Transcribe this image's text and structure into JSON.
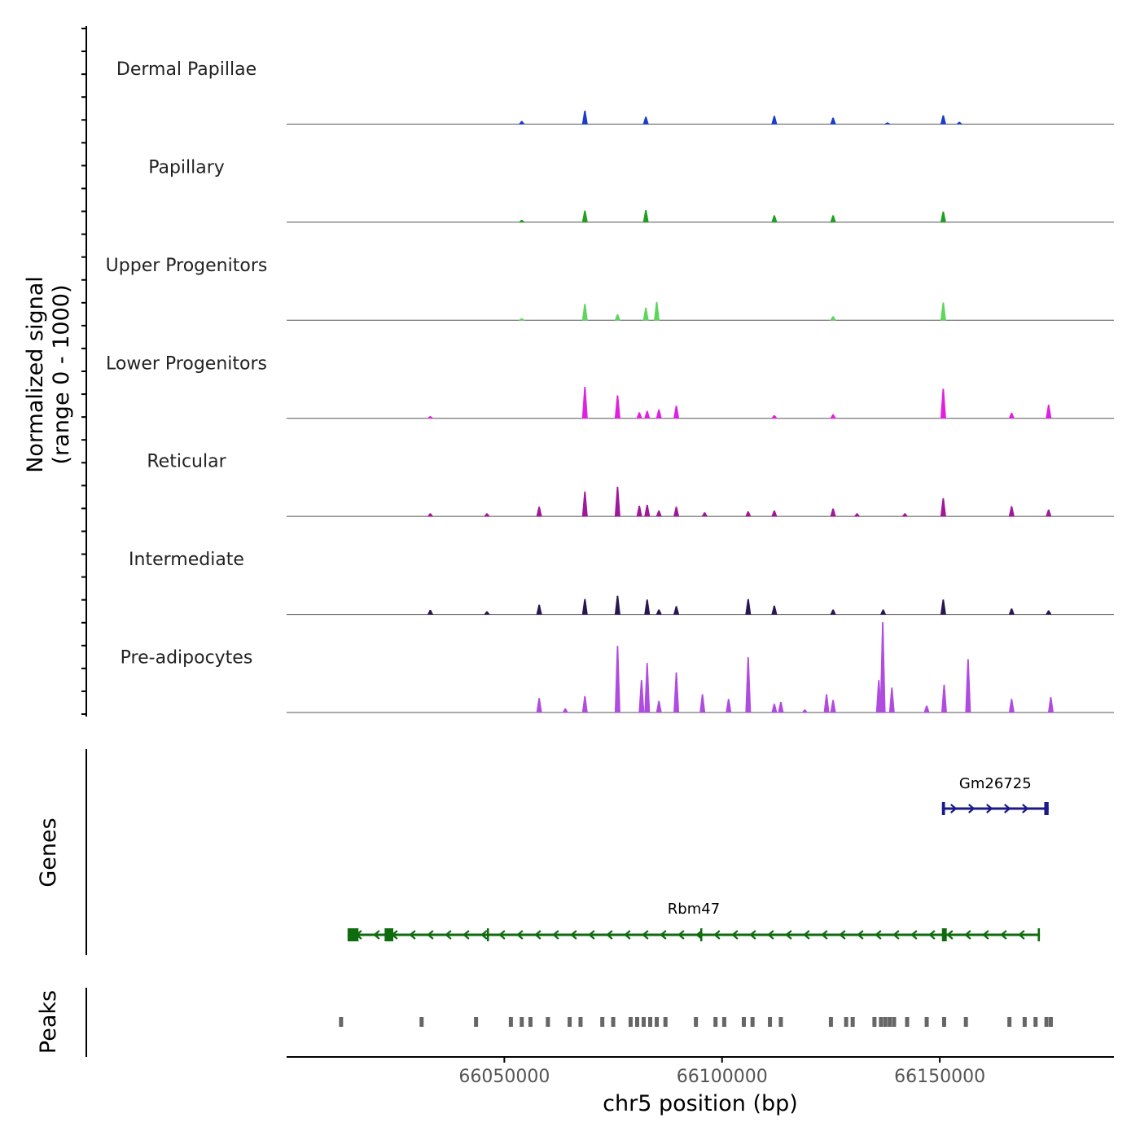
{
  "chart_data": {
    "type": "area",
    "chromosome": "chr5",
    "region": [
      66000000,
      66190000
    ],
    "coverage": {
      "ylabel_line1": "Normalized signal",
      "ylabel_line2": "(range 0 - 1000)",
      "ylim": [
        0,
        1000
      ],
      "tracks": [
        {
          "name": "Dermal Papillae",
          "color": "#1a3ccc",
          "peaks": [
            [
              66068500,
              140
            ],
            [
              66082500,
              75
            ],
            [
              66112000,
              85
            ],
            [
              66125500,
              65
            ],
            [
              66150800,
              90
            ],
            [
              66054000,
              30
            ],
            [
              66154500,
              22
            ],
            [
              66138000,
              15
            ]
          ]
        },
        {
          "name": "Papillary",
          "color": "#1fa01f",
          "peaks": [
            [
              66068500,
              120
            ],
            [
              66082500,
              125
            ],
            [
              66112000,
              70
            ],
            [
              66125500,
              70
            ],
            [
              66150800,
              110
            ],
            [
              66054000,
              22
            ]
          ]
        },
        {
          "name": "Upper Progenitors",
          "color": "#5cd65c",
          "peaks": [
            [
              66068500,
              170
            ],
            [
              66076000,
              60
            ],
            [
              66082500,
              130
            ],
            [
              66085000,
              190
            ],
            [
              66125500,
              40
            ],
            [
              66150800,
              185
            ],
            [
              66054000,
              18
            ]
          ]
        },
        {
          "name": "Lower Progenitors",
          "color": "#e020e0",
          "peaks": [
            [
              66068500,
              330
            ],
            [
              66076000,
              240
            ],
            [
              66081000,
              60
            ],
            [
              66082800,
              75
            ],
            [
              66085500,
              90
            ],
            [
              66089500,
              130
            ],
            [
              66150800,
              310
            ],
            [
              66166500,
              55
            ],
            [
              66175000,
              140
            ],
            [
              66125500,
              40
            ],
            [
              66033000,
              20
            ],
            [
              66112000,
              30
            ]
          ]
        },
        {
          "name": "Reticular",
          "color": "#a0189a",
          "peaks": [
            [
              66058000,
              100
            ],
            [
              66068500,
              260
            ],
            [
              66076000,
              310
            ],
            [
              66081000,
              110
            ],
            [
              66082800,
              120
            ],
            [
              66085500,
              60
            ],
            [
              66089500,
              100
            ],
            [
              66096000,
              40
            ],
            [
              66106000,
              50
            ],
            [
              66112000,
              60
            ],
            [
              66125500,
              80
            ],
            [
              66150800,
              190
            ],
            [
              66166500,
              105
            ],
            [
              66175000,
              70
            ],
            [
              66033000,
              30
            ],
            [
              66046000,
              30
            ],
            [
              66131000,
              30
            ],
            [
              66142000,
              30
            ]
          ]
        },
        {
          "name": "Intermediate",
          "color": "#2a1650",
          "peaks": [
            [
              66058000,
              100
            ],
            [
              66068500,
              160
            ],
            [
              66076000,
              195
            ],
            [
              66082800,
              155
            ],
            [
              66085500,
              50
            ],
            [
              66089500,
              85
            ],
            [
              66106000,
              160
            ],
            [
              66112000,
              90
            ],
            [
              66125500,
              50
            ],
            [
              66137000,
              50
            ],
            [
              66150800,
              155
            ],
            [
              66166500,
              60
            ],
            [
              66175000,
              40
            ],
            [
              66033000,
              45
            ],
            [
              66046000,
              30
            ]
          ]
        },
        {
          "name": "Pre-adipocytes",
          "color": "#b04be0",
          "peaks": [
            [
              66058000,
              150
            ],
            [
              66068500,
              170
            ],
            [
              66076000,
              700
            ],
            [
              66081500,
              340
            ],
            [
              66082800,
              520
            ],
            [
              66085500,
              120
            ],
            [
              66089500,
              420
            ],
            [
              66095500,
              190
            ],
            [
              66101500,
              140
            ],
            [
              66106000,
              580
            ],
            [
              66112000,
              90
            ],
            [
              66113500,
              110
            ],
            [
              66124000,
              190
            ],
            [
              66125500,
              130
            ],
            [
              66136000,
              340
            ],
            [
              66136900,
              950
            ],
            [
              66139000,
              260
            ],
            [
              66151000,
              290
            ],
            [
              66156500,
              560
            ],
            [
              66166500,
              140
            ],
            [
              66175500,
              160
            ],
            [
              66064000,
              40
            ],
            [
              66119000,
              30
            ],
            [
              66147000,
              70
            ]
          ]
        }
      ]
    },
    "genes": {
      "label": "Genes",
      "items": [
        {
          "name": "Gm26725",
          "start": 66150500,
          "end": 66175000,
          "strand": "+",
          "color": "#1a1a8a",
          "exons": [
            [
              66150500,
              66151200
            ],
            [
              66174000,
              66175000
            ]
          ]
        },
        {
          "name": "Rbm47",
          "start": 66014000,
          "end": 66173000,
          "strand": "-",
          "color": "#0e6b0e",
          "exons": [
            [
              66014000,
              66016500
            ],
            [
              66022500,
              66024500
            ],
            [
              66046000,
              66046300
            ],
            [
              66095000,
              66095300
            ],
            [
              66150500,
              66151600
            ],
            [
              66172500,
              66173000
            ]
          ]
        }
      ]
    },
    "peaks_track": {
      "label": "Peaks",
      "color": "#666666",
      "positions": [
        66012500,
        66031000,
        66043500,
        66051500,
        66054000,
        66056000,
        66060000,
        66065000,
        66067500,
        66072500,
        66075000,
        66079000,
        66080500,
        66082000,
        66083500,
        66085000,
        66087000,
        66094000,
        66098500,
        66100500,
        66105000,
        66107000,
        66111000,
        66113500,
        66125000,
        66128500,
        66130000,
        66135000,
        66136500,
        66137500,
        66138500,
        66139500,
        66142500,
        66147000,
        66151000,
        66156000,
        66166000,
        66169500,
        66172000,
        66174500,
        66175500
      ]
    },
    "xaxis": {
      "xlabel": "chr5 position (bp)",
      "ticks": [
        66050000,
        66100000,
        66150000
      ],
      "tick_labels": [
        "66050000",
        "66100000",
        "66150000"
      ]
    }
  }
}
